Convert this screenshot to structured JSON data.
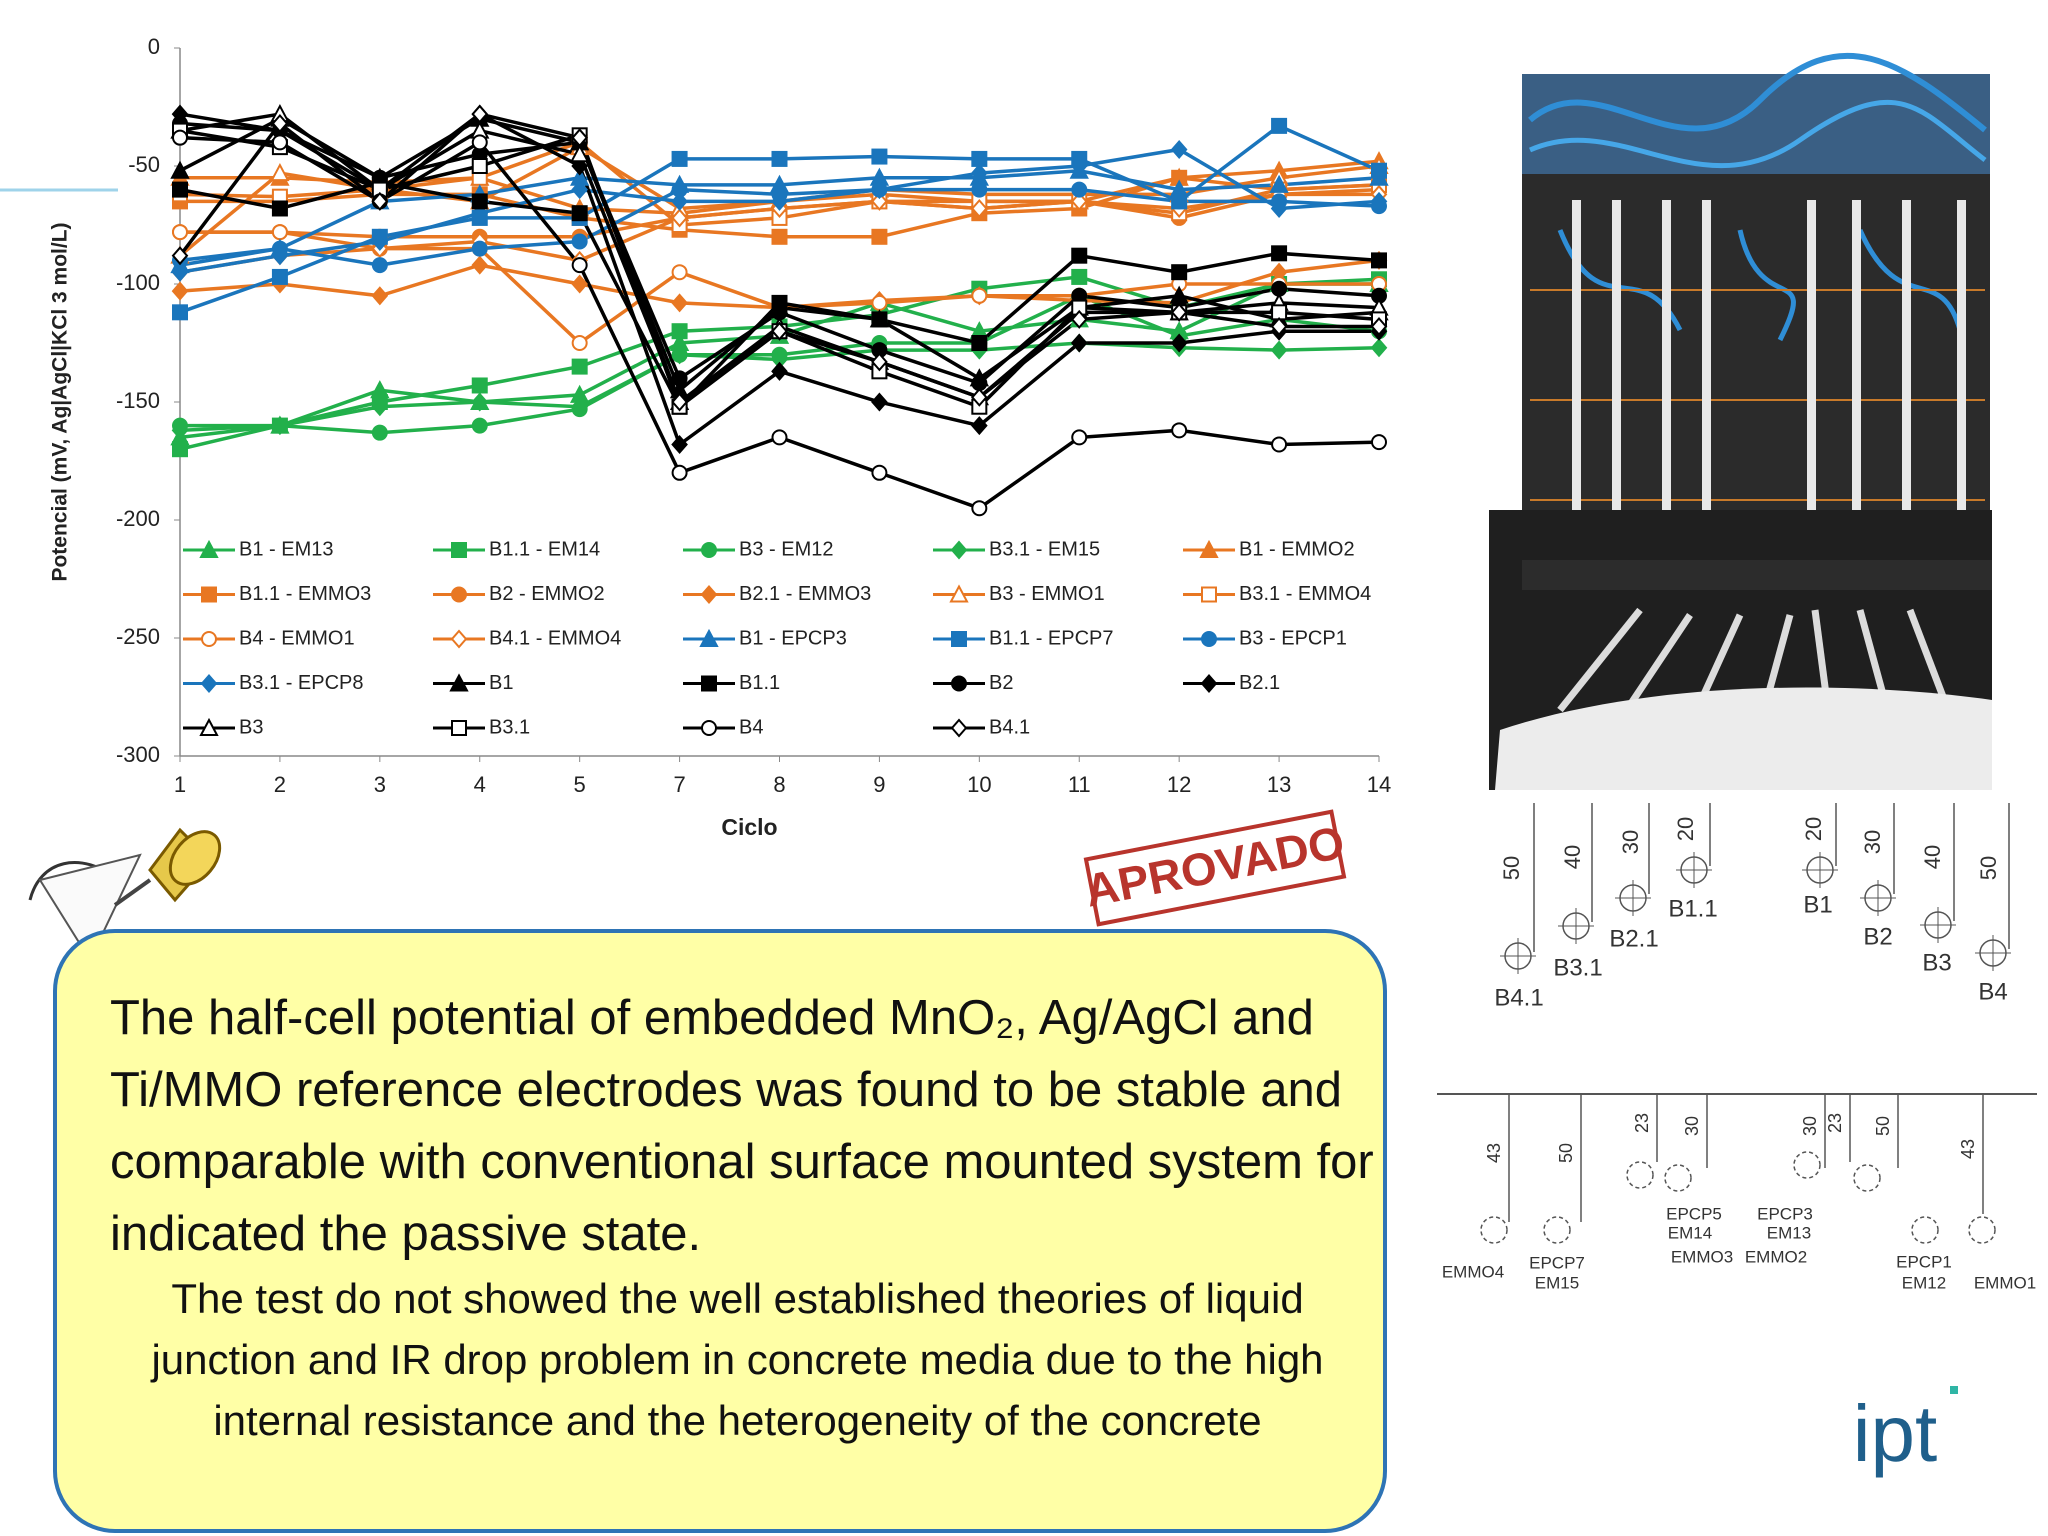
{
  "chart_data": {
    "type": "line",
    "y_label": "Potencial (mV, Ag|AgCl|KCl 3 mol/L)",
    "x_label": "Ciclo",
    "categories": [
      "1",
      "2",
      "3",
      "4",
      "5",
      "7",
      "8",
      "9",
      "10",
      "11",
      "12",
      "13",
      "14"
    ],
    "ylim": [
      -300,
      0
    ],
    "yticks": [
      0,
      -50,
      -100,
      -150,
      -200,
      -250,
      -300
    ],
    "grid": false,
    "series": [
      {
        "name": "B1 - EM13",
        "color": "#22b04b",
        "marker": "triangle",
        "values": [
          -165,
          -160,
          -145,
          -150,
          -147,
          -125,
          -122,
          -108,
          -120,
          -115,
          -120,
          -100,
          -100
        ]
      },
      {
        "name": "B1.1 - EM14",
        "color": "#22b04b",
        "marker": "square",
        "values": [
          -170,
          -160,
          -150,
          -143,
          -135,
          -120,
          -118,
          -113,
          -102,
          -97,
          -110,
          -100,
          -98
        ]
      },
      {
        "name": "B3 - EM12",
        "color": "#22b04b",
        "marker": "circle",
        "values": [
          -160,
          -160,
          -163,
          -160,
          -153,
          -130,
          -130,
          -125,
          -125,
          -105,
          -122,
          -115,
          -120
        ]
      },
      {
        "name": "B3.1 - EM15",
        "color": "#22b04b",
        "marker": "diamond",
        "values": [
          -162,
          -160,
          -152,
          -150,
          -152,
          -130,
          -132,
          -128,
          -128,
          -125,
          -127,
          -128,
          -127
        ]
      },
      {
        "name": "B1 - EMMO2",
        "color": "#e87722",
        "marker": "triangle",
        "values": [
          -55,
          -55,
          -57,
          -55,
          -68,
          -70,
          -65,
          -62,
          -65,
          -65,
          -55,
          -52,
          -48
        ]
      },
      {
        "name": "B1.1 - EMMO3",
        "color": "#e87722",
        "marker": "square",
        "values": [
          -65,
          -65,
          -62,
          -62,
          -72,
          -77,
          -80,
          -80,
          -70,
          -68,
          -55,
          -60,
          -58
        ]
      },
      {
        "name": "B2 - EMMO2",
        "color": "#e87722",
        "marker": "circle",
        "values": [
          -78,
          -78,
          -80,
          -80,
          -80,
          -72,
          -68,
          -65,
          -68,
          -65,
          -72,
          -62,
          -60
        ]
      },
      {
        "name": "B2.1 - EMMO3",
        "color": "#e87722",
        "marker": "diamond",
        "values": [
          -103,
          -100,
          -105,
          -92,
          -100,
          -108,
          -110,
          -107,
          -105,
          -107,
          -108,
          -95,
          -90
        ]
      },
      {
        "name": "B3 - EMMO1",
        "color": "#e87722",
        "marker": "triangle-open",
        "values": [
          -88,
          -53,
          -60,
          -65,
          -42,
          -68,
          -65,
          -60,
          -62,
          -62,
          -62,
          -55,
          -50
        ]
      },
      {
        "name": "B3.1 - EMMO4",
        "color": "#e87722",
        "marker": "square-open",
        "values": [
          -62,
          -63,
          -60,
          -55,
          -40,
          -75,
          -72,
          -65,
          -65,
          -65,
          -70,
          -60,
          -58
        ]
      },
      {
        "name": "B4 - EMMO1",
        "color": "#e87722",
        "marker": "circle-open",
        "values": [
          -78,
          -78,
          -85,
          -85,
          -125,
          -95,
          -110,
          -108,
          -105,
          -105,
          -100,
          -100,
          -100
        ]
      },
      {
        "name": "B4.1 - EMMO4",
        "color": "#e87722",
        "marker": "diamond-open",
        "values": [
          -95,
          -88,
          -85,
          -82,
          -90,
          -72,
          -68,
          -65,
          -68,
          -65,
          -68,
          -62,
          -62
        ]
      },
      {
        "name": "B1 - EPCP3",
        "color": "#1a75bc",
        "marker": "triangle",
        "values": [
          -92,
          -85,
          -65,
          -62,
          -55,
          -58,
          -58,
          -55,
          -55,
          -52,
          -60,
          -58,
          -55
        ]
      },
      {
        "name": "B1.1 - EPCP7",
        "color": "#1a75bc",
        "marker": "square",
        "values": [
          -112,
          -97,
          -80,
          -72,
          -72,
          -47,
          -47,
          -46,
          -47,
          -47,
          -65,
          -33,
          -52
        ]
      },
      {
        "name": "B3 - EPCP1",
        "color": "#1a75bc",
        "marker": "circle",
        "values": [
          -90,
          -85,
          -92,
          -85,
          -82,
          -60,
          -62,
          -60,
          -60,
          -60,
          -65,
          -65,
          -67
        ]
      },
      {
        "name": "B3.1 - EPCP8",
        "color": "#1a75bc",
        "marker": "diamond",
        "values": [
          -95,
          -88,
          -82,
          -70,
          -60,
          -65,
          -65,
          -60,
          -53,
          -50,
          -43,
          -68,
          -65
        ]
      },
      {
        "name": "B1",
        "color": "#000000",
        "marker": "triangle",
        "values": [
          -52,
          -30,
          -55,
          -30,
          -40,
          -145,
          -110,
          -115,
          -140,
          -110,
          -105,
          -115,
          -112
        ]
      },
      {
        "name": "B1.1",
        "color": "#000000",
        "marker": "square",
        "values": [
          -60,
          -68,
          -57,
          -65,
          -70,
          -152,
          -108,
          -115,
          -125,
          -88,
          -95,
          -87,
          -90
        ]
      },
      {
        "name": "B2",
        "color": "#000000",
        "marker": "circle",
        "values": [
          -32,
          -35,
          -55,
          -45,
          -40,
          -140,
          -112,
          -128,
          -142,
          -105,
          -110,
          -102,
          -105
        ]
      },
      {
        "name": "B2.1",
        "color": "#000000",
        "marker": "diamond",
        "values": [
          -28,
          -35,
          -60,
          -28,
          -50,
          -168,
          -137,
          -150,
          -160,
          -125,
          -125,
          -120,
          -120
        ]
      },
      {
        "name": "B3",
        "color": "#000000",
        "marker": "triangle-open",
        "values": [
          -35,
          -28,
          -60,
          -35,
          -45,
          -150,
          -118,
          -133,
          -148,
          -112,
          -112,
          -108,
          -110
        ]
      },
      {
        "name": "B3.1",
        "color": "#000000",
        "marker": "square-open",
        "values": [
          -35,
          -42,
          -60,
          -50,
          -37,
          -152,
          -120,
          -137,
          -152,
          -110,
          -112,
          -112,
          -115
        ]
      },
      {
        "name": "B4",
        "color": "#000000",
        "marker": "circle-open",
        "values": [
          -38,
          -40,
          -65,
          -40,
          -92,
          -180,
          -165,
          -180,
          -195,
          -165,
          -162,
          -168,
          -167
        ]
      },
      {
        "name": "B4.1",
        "color": "#000000",
        "marker": "diamond-open",
        "values": [
          -88,
          -32,
          -65,
          -28,
          -38,
          -150,
          -120,
          -133,
          -148,
          -115,
          -112,
          -118,
          -118
        ]
      }
    ]
  },
  "stamp": "APROVADO",
  "text_box": {
    "main": "The half-cell potential of embedded MnO₂, Ag/AgCl and Ti/MMO reference electrodes was found to be stable and comparable with conventional surface mounted system for indicated the passive state.",
    "detail": "The test do not showed the well established theories of liquid junction and IR drop problem in concrete media due to the high internal resistance and the heterogeneity of the concrete"
  },
  "diagram_top": {
    "labels": [
      "B4.1",
      "B3.1",
      "B2.1",
      "B1.1",
      "B1",
      "B2",
      "B3",
      "B4"
    ],
    "dims": [
      "50",
      "40",
      "30",
      "20",
      "20",
      "30",
      "40",
      "50"
    ]
  },
  "diagram_bottom": {
    "dims": [
      "43",
      "50",
      "23",
      "30",
      "30",
      "23",
      "50",
      "43"
    ],
    "labels": [
      "EMMO4",
      "EPCP7",
      "EM15",
      "EPCP5",
      "EM14",
      "EMMO3",
      "EPCP3",
      "EM13",
      "EMMO2",
      "EPCP1",
      "EM12",
      "EMMO1"
    ]
  },
  "logo": "ipt"
}
